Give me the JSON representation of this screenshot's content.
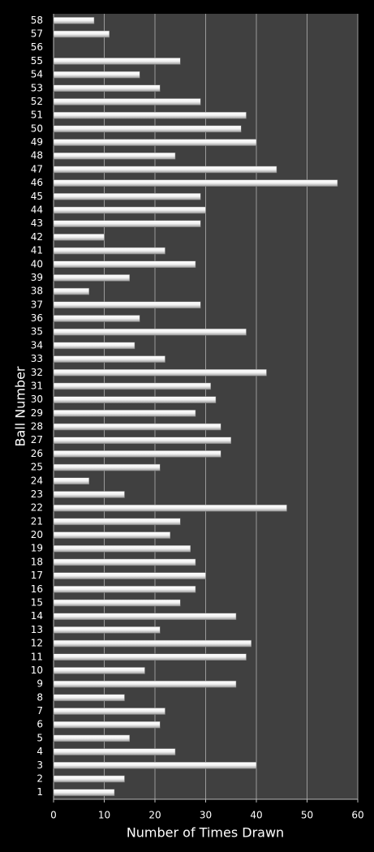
{
  "chart_data": {
    "type": "hbar",
    "x_label": "Number of Times Drawn",
    "y_label": "Ball Number",
    "categories": [
      "1",
      "2",
      "3",
      "4",
      "5",
      "6",
      "7",
      "8",
      "9",
      "10",
      "11",
      "12",
      "13",
      "14",
      "15",
      "16",
      "17",
      "18",
      "19",
      "20",
      "21",
      "22",
      "23",
      "24",
      "25",
      "26",
      "27",
      "28",
      "29",
      "30",
      "31",
      "32",
      "33",
      "34",
      "35",
      "36",
      "37",
      "38",
      "39",
      "40",
      "41",
      "42",
      "43",
      "44",
      "45",
      "46",
      "47",
      "48",
      "49",
      "50",
      "51",
      "52",
      "53",
      "54",
      "55",
      "56",
      "57",
      "58"
    ],
    "values": [
      12,
      14,
      40,
      24,
      15,
      21,
      22,
      14,
      36,
      18,
      38,
      39,
      21,
      36,
      25,
      28,
      30,
      28,
      27,
      23,
      25,
      46,
      14,
      7,
      21,
      33,
      35,
      33,
      28,
      32,
      31,
      42,
      22,
      16,
      38,
      17,
      29,
      7,
      15,
      28,
      22,
      10,
      29,
      30,
      29,
      56,
      44,
      24,
      40,
      37,
      38,
      29,
      21,
      17,
      25,
      0,
      11,
      8
    ],
    "color": "#ffffff",
    "xlim": [
      0,
      60
    ],
    "xticks": [
      0,
      10,
      20,
      30,
      40,
      50,
      60
    ],
    "grid": true
  }
}
